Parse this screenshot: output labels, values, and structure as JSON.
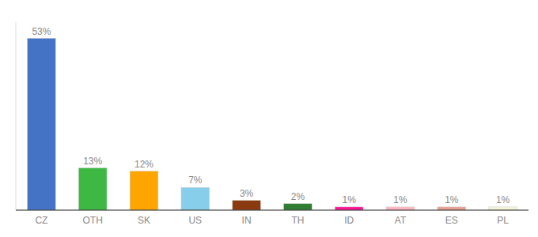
{
  "chart_data": {
    "type": "bar",
    "categories": [
      "CZ",
      "OTH",
      "SK",
      "US",
      "IN",
      "TH",
      "ID",
      "AT",
      "ES",
      "PL"
    ],
    "values": [
      53,
      13,
      12,
      7,
      3,
      2,
      1,
      1,
      1,
      1
    ],
    "value_labels": [
      "53%",
      "13%",
      "12%",
      "7%",
      "3%",
      "2%",
      "1%",
      "1%",
      "1%",
      "1%"
    ],
    "colors": [
      "#4472C4",
      "#3CB843",
      "#FFA500",
      "#87CEEB",
      "#8B3A0F",
      "#2E7D32",
      "#FF1493",
      "#FFB6C1",
      "#E8A090",
      "#F5F5DC"
    ],
    "ylim": [
      0,
      58
    ],
    "data_labels": true,
    "tick_labels": "x"
  }
}
